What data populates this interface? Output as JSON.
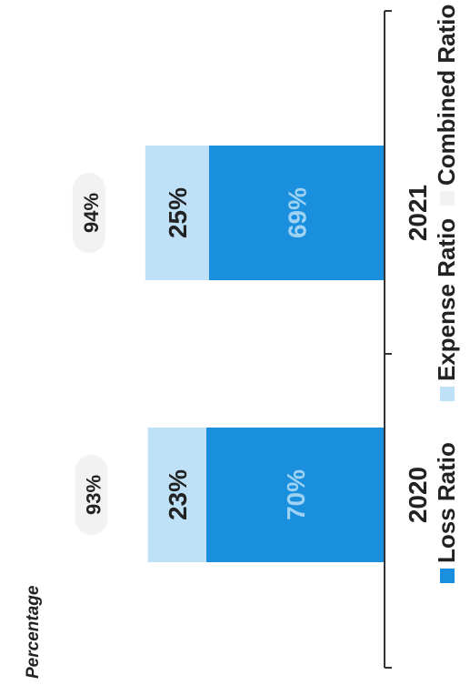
{
  "chart_data": {
    "type": "bar",
    "stacked": true,
    "orientation": "rotated-90",
    "ylabel": "Percentage",
    "categories": [
      "2020",
      "2021"
    ],
    "series": [
      {
        "name": "Loss Ratio",
        "values": [
          70,
          69
        ],
        "labels": [
          "70%",
          "69%"
        ],
        "color": "#1a8fde"
      },
      {
        "name": "Expense Ratio",
        "values": [
          23,
          25
        ],
        "labels": [
          "23%",
          "25%"
        ],
        "color": "#bfe1f8"
      },
      {
        "name": "Combined Ratio",
        "values": [
          93,
          94
        ],
        "labels": [
          "93%",
          "94%"
        ],
        "color": "#f2f2f2"
      }
    ],
    "legend_position": "bottom",
    "grid": false
  }
}
